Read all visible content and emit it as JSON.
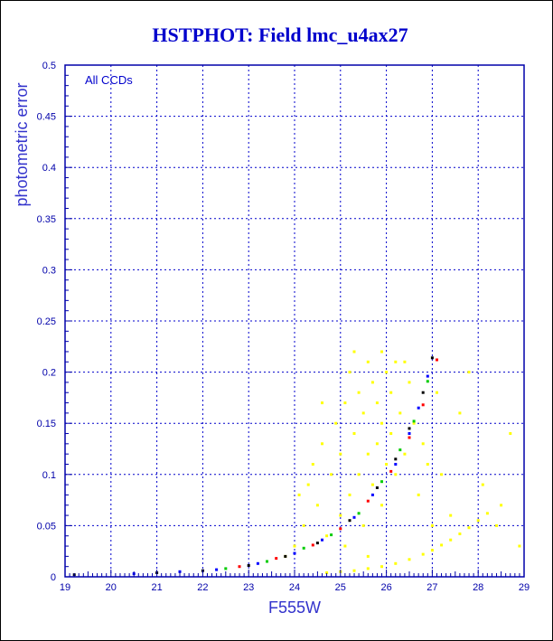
{
  "chart_data": {
    "type": "scatter",
    "title": "HSTPHOT: Field lmc_u4ax27",
    "xlabel": "F555W",
    "ylabel": "photometric error",
    "annotation": "All CCDs",
    "xlim": [
      19,
      29
    ],
    "ylim": [
      0,
      0.5
    ],
    "xticks": [
      19,
      20,
      21,
      22,
      23,
      24,
      25,
      26,
      27,
      28,
      29
    ],
    "yticks": [
      0,
      0.05,
      0.1,
      0.15,
      0.2,
      0.25,
      0.3,
      0.35,
      0.4,
      0.45,
      0.5
    ],
    "grid": true,
    "colors": {
      "title": "#0000cc",
      "axes": "#0000aa",
      "grid": "#0000cc",
      "label": "#3333cc"
    },
    "series": [
      {
        "color": "#ffff00",
        "role": "scattered-cloud",
        "points": [
          [
            24.0,
            0.03
          ],
          [
            24.2,
            0.05
          ],
          [
            24.3,
            0.09
          ],
          [
            24.4,
            0.11
          ],
          [
            24.5,
            0.07
          ],
          [
            24.6,
            0.13
          ],
          [
            24.7,
            0.04
          ],
          [
            24.8,
            0.1
          ],
          [
            24.9,
            0.15
          ],
          [
            25.0,
            0.06
          ],
          [
            25.0,
            0.12
          ],
          [
            25.1,
            0.17
          ],
          [
            25.2,
            0.08
          ],
          [
            25.2,
            0.2
          ],
          [
            25.3,
            0.14
          ],
          [
            25.4,
            0.1
          ],
          [
            25.4,
            0.18
          ],
          [
            25.5,
            0.05
          ],
          [
            25.5,
            0.16
          ],
          [
            25.6,
            0.12
          ],
          [
            25.6,
            0.21
          ],
          [
            25.7,
            0.09
          ],
          [
            25.7,
            0.19
          ],
          [
            25.8,
            0.13
          ],
          [
            25.8,
            0.17
          ],
          [
            25.9,
            0.07
          ],
          [
            25.9,
            0.15
          ],
          [
            26.0,
            0.11
          ],
          [
            26.0,
            0.2
          ],
          [
            26.1,
            0.14
          ],
          [
            26.1,
            0.18
          ],
          [
            26.2,
            0.1
          ],
          [
            26.2,
            0.21
          ],
          [
            26.3,
            0.16
          ],
          [
            26.4,
            0.12
          ],
          [
            26.5,
            0.19
          ],
          [
            26.6,
            0.15
          ],
          [
            26.7,
            0.08
          ],
          [
            26.8,
            0.13
          ],
          [
            27.0,
            0.05
          ],
          [
            27.2,
            0.1
          ],
          [
            27.4,
            0.06
          ],
          [
            27.6,
            0.16
          ],
          [
            27.8,
            0.2
          ],
          [
            28.1,
            0.09
          ],
          [
            28.4,
            0.05
          ],
          [
            28.7,
            0.14
          ],
          [
            28.9,
            0.03
          ],
          [
            24.6,
            0.17
          ],
          [
            25.3,
            0.22
          ],
          [
            25.9,
            0.22
          ],
          [
            26.4,
            0.21
          ],
          [
            23.8,
            0.02
          ],
          [
            24.1,
            0.08
          ],
          [
            25.1,
            0.03
          ],
          [
            25.6,
            0.02
          ],
          [
            26.9,
            0.11
          ],
          [
            27.1,
            0.18
          ]
        ]
      },
      {
        "color": "#ffff00",
        "role": "faint-sequence",
        "points": [
          [
            24.7,
            0.004
          ],
          [
            25.0,
            0.005
          ],
          [
            25.3,
            0.006
          ],
          [
            25.6,
            0.008
          ],
          [
            25.9,
            0.01
          ],
          [
            26.2,
            0.013
          ],
          [
            26.5,
            0.017
          ],
          [
            26.8,
            0.022
          ],
          [
            27.0,
            0.026
          ],
          [
            27.2,
            0.031
          ],
          [
            27.4,
            0.036
          ],
          [
            27.6,
            0.042
          ],
          [
            27.8,
            0.048
          ],
          [
            28.0,
            0.055
          ],
          [
            28.2,
            0.062
          ],
          [
            28.5,
            0.07
          ]
        ]
      },
      {
        "color": "#000000",
        "role": "main-sequence",
        "points": [
          [
            19.2,
            0.002
          ],
          [
            21.0,
            0.004
          ],
          [
            22.0,
            0.006
          ],
          [
            23.0,
            0.011
          ],
          [
            23.8,
            0.02
          ],
          [
            24.5,
            0.033
          ],
          [
            25.2,
            0.055
          ],
          [
            25.8,
            0.087
          ],
          [
            26.2,
            0.115
          ],
          [
            26.5,
            0.145
          ],
          [
            26.8,
            0.18
          ],
          [
            27.0,
            0.214
          ]
        ]
      },
      {
        "color": "#00cc00",
        "role": "main-sequence",
        "points": [
          [
            22.5,
            0.008
          ],
          [
            23.4,
            0.015
          ],
          [
            24.2,
            0.028
          ],
          [
            24.8,
            0.041
          ],
          [
            25.4,
            0.062
          ],
          [
            25.9,
            0.093
          ],
          [
            26.3,
            0.124
          ],
          [
            26.6,
            0.152
          ],
          [
            26.9,
            0.191
          ]
        ]
      },
      {
        "color": "#ff0000",
        "role": "main-sequence",
        "points": [
          [
            22.8,
            0.01
          ],
          [
            23.6,
            0.018
          ],
          [
            24.4,
            0.031
          ],
          [
            25.0,
            0.047
          ],
          [
            25.6,
            0.074
          ],
          [
            26.1,
            0.103
          ],
          [
            26.5,
            0.136
          ],
          [
            26.8,
            0.168
          ],
          [
            27.1,
            0.212
          ]
        ]
      },
      {
        "color": "#0000ff",
        "role": "main-sequence",
        "points": [
          [
            20.5,
            0.003
          ],
          [
            21.5,
            0.005
          ],
          [
            22.3,
            0.007
          ],
          [
            23.2,
            0.013
          ],
          [
            24.0,
            0.023
          ],
          [
            24.6,
            0.036
          ],
          [
            25.3,
            0.058
          ],
          [
            25.7,
            0.08
          ],
          [
            26.2,
            0.11
          ],
          [
            26.5,
            0.14
          ],
          [
            26.7,
            0.165
          ],
          [
            26.9,
            0.196
          ]
        ]
      }
    ]
  }
}
